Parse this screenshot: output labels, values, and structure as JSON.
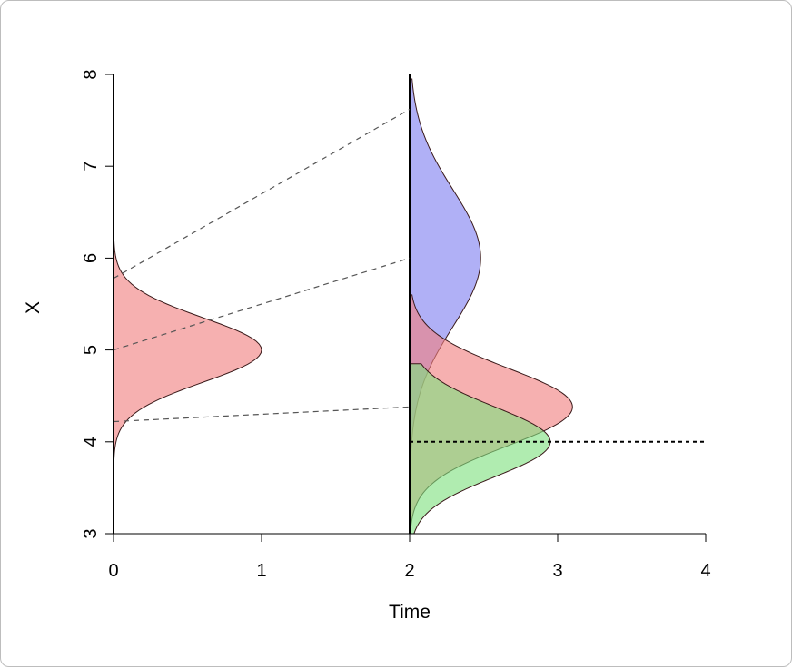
{
  "chart_data": {
    "type": "area",
    "xlabel": "Time",
    "ylabel": "X",
    "xlim": [
      0,
      4
    ],
    "ylim": [
      3,
      8
    ],
    "xticks": [
      "0",
      "1",
      "2",
      "3",
      "4"
    ],
    "yticks": [
      "3",
      "4",
      "5",
      "6",
      "7",
      "8"
    ],
    "grid": false,
    "legend": "none",
    "densities": [
      {
        "id": "initial-density",
        "time": 0,
        "mean": 5.0,
        "sd": 0.35,
        "peak_width": 1.0,
        "color": "#f08080"
      },
      {
        "id": "blue-density",
        "time": 2,
        "mean": 6.0,
        "sd": 0.75,
        "peak_width": 0.48,
        "color": "#8080f0",
        "clip": [
          3.1,
          7.95
        ]
      },
      {
        "id": "red-density",
        "time": 2,
        "mean": 4.38,
        "sd": 0.42,
        "peak_width": 1.1,
        "color": "#f08080",
        "clip": [
          3.0,
          5.6
        ]
      },
      {
        "id": "green-density",
        "time": 2,
        "mean": 4.0,
        "sd": 0.38,
        "peak_width": 0.95,
        "color": "#80e080",
        "clip": [
          3.0,
          4.85
        ]
      }
    ],
    "mapping_lines": [
      {
        "from": [
          0,
          5.78
        ],
        "to": [
          2,
          7.62
        ]
      },
      {
        "from": [
          0,
          5.0
        ],
        "to": [
          2,
          6.0
        ]
      },
      {
        "from": [
          0,
          4.22
        ],
        "to": [
          2,
          4.38
        ]
      }
    ],
    "threshold": {
      "y": 4.0,
      "x_start": 2,
      "x_end": 4
    }
  }
}
